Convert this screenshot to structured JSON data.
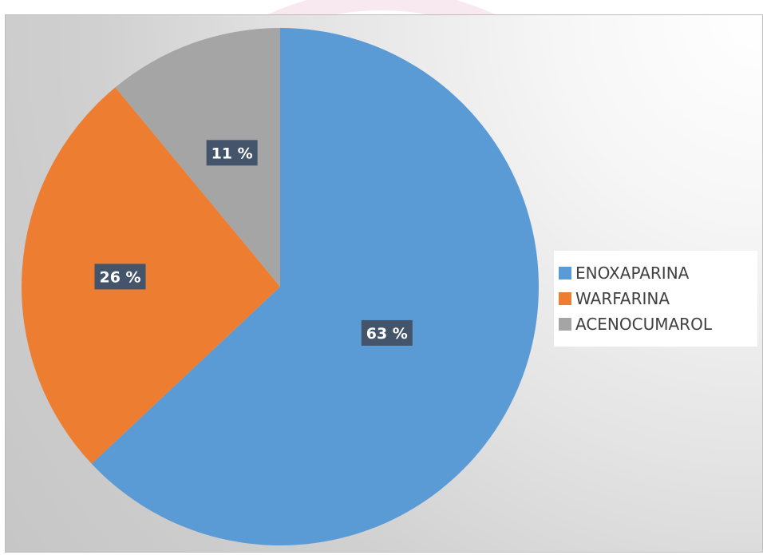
{
  "colors": {
    "enoxaparina": "#5b9bd5",
    "warfarina": "#ed7d31",
    "acenocumarol": "#a5a5a5",
    "label_box": "#44546a",
    "watermark": "#f5e3ec"
  },
  "chart_data": {
    "type": "pie",
    "categories": [
      "ENOXAPARINA",
      "WARFARINA",
      "ACENOCUMAROL"
    ],
    "values": [
      63,
      26,
      11
    ],
    "data_labels": [
      "63 %",
      "26 %",
      "11 %"
    ],
    "start_angle": "12 o'clock",
    "direction": "clockwise",
    "legend_position": "right"
  }
}
